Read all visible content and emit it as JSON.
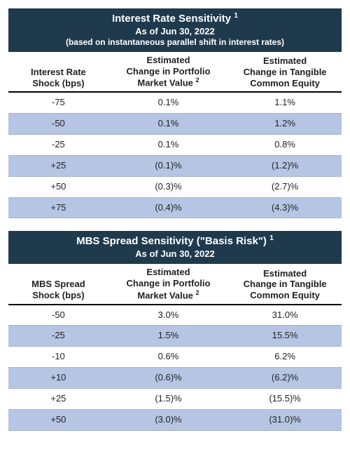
{
  "colors": {
    "header_bg": "#1f3a4d",
    "header_text": "#ffffff",
    "band_bg": "#b6c5e4",
    "row_border": "#a9b6c2",
    "header_rule": "#000000",
    "body_text": "#222222"
  },
  "tables": [
    {
      "title_main": "Interest Rate Sensitivity",
      "title_main_sup": "1",
      "title_sub": "As of Jun 30, 2022",
      "title_sub2": "(based on instantaneous parallel shift in interest rates)",
      "columns": [
        {
          "line1": "Interest Rate",
          "line2": "Shock (bps)",
          "sup": ""
        },
        {
          "line1": "Estimated",
          "line2": "Change in Portfolio",
          "line3": "Market Value",
          "sup": "2"
        },
        {
          "line1": "Estimated",
          "line2": "Change in Tangible",
          "line3": "Common Equity",
          "sup": ""
        }
      ],
      "rows": [
        {
          "shock": "-75",
          "pmv": "0.1%",
          "tce": "1.1%",
          "band": false
        },
        {
          "shock": "-50",
          "pmv": "0.1%",
          "tce": "1.2%",
          "band": true
        },
        {
          "shock": "-25",
          "pmv": "0.1%",
          "tce": "0.8%",
          "band": false
        },
        {
          "shock": "+25",
          "pmv": "(0.1)%",
          "tce": "(1.2)%",
          "band": true
        },
        {
          "shock": "+50",
          "pmv": "(0.3)%",
          "tce": "(2.7)%",
          "band": false
        },
        {
          "shock": "+75",
          "pmv": "(0.4)%",
          "tce": "(4.3)%",
          "band": true
        }
      ]
    },
    {
      "title_main": "MBS Spread Sensitivity (\"Basis Risk\")",
      "title_main_sup": "1",
      "title_sub": "As of Jun 30, 2022",
      "title_sub2": "",
      "columns": [
        {
          "line1": "MBS Spread",
          "line2": "Shock (bps)",
          "sup": ""
        },
        {
          "line1": "Estimated",
          "line2": "Change in Portfolio",
          "line3": "Market Value",
          "sup": "2"
        },
        {
          "line1": "Estimated",
          "line2": "Change in Tangible",
          "line3": "Common Equity",
          "sup": ""
        }
      ],
      "rows": [
        {
          "shock": "-50",
          "pmv": "3.0%",
          "tce": "31.0%",
          "band": false
        },
        {
          "shock": "-25",
          "pmv": "1.5%",
          "tce": "15.5%",
          "band": true
        },
        {
          "shock": "-10",
          "pmv": "0.6%",
          "tce": "6.2%",
          "band": false
        },
        {
          "shock": "+10",
          "pmv": "(0.6)%",
          "tce": "(6.2)%",
          "band": true
        },
        {
          "shock": "+25",
          "pmv": "(1.5)%",
          "tce": "(15.5)%",
          "band": false
        },
        {
          "shock": "+50",
          "pmv": "(3.0)%",
          "tce": "(31.0)%",
          "band": true
        }
      ]
    }
  ]
}
